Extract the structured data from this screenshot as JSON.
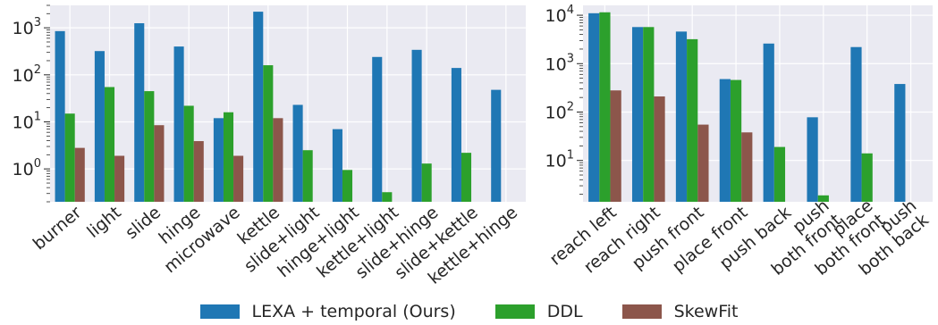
{
  "colors": {
    "background": "#eaeaf2",
    "grid": "#ffffff",
    "text": "#262626",
    "series": [
      "#1f77b4",
      "#2ca02c",
      "#8c564b"
    ]
  },
  "legend": {
    "items": [
      {
        "label": "LEXA + temporal (Ours)",
        "color": "#1f77b4"
      },
      {
        "label": "DDL",
        "color": "#2ca02c"
      },
      {
        "label": "SkewFit",
        "color": "#8c564b"
      }
    ]
  },
  "chart_data": [
    {
      "type": "bar",
      "yscale": "log",
      "ylim": [
        0.2,
        3000
      ],
      "grid": true,
      "yticks": [
        {
          "value": 1,
          "base": "10",
          "exp": "0"
        },
        {
          "value": 10,
          "base": "10",
          "exp": "1"
        },
        {
          "value": 100,
          "base": "10",
          "exp": "2"
        },
        {
          "value": 1000,
          "base": "10",
          "exp": "3"
        }
      ],
      "categories": [
        "burner",
        "light",
        "slide",
        "hinge",
        "microwave",
        "kettle",
        "slide+light",
        "hinge+light",
        "kettle+light",
        "slide+hinge",
        "slide+kettle",
        "kettle+hinge"
      ],
      "series": [
        {
          "name": "LEXA + temporal (Ours)",
          "values": [
            850,
            320,
            1250,
            400,
            12,
            2200,
            23,
            7,
            240,
            340,
            140,
            48
          ]
        },
        {
          "name": "DDL",
          "values": [
            15,
            55,
            45,
            22,
            16,
            160,
            2.5,
            0.95,
            0.32,
            1.3,
            2.2,
            null
          ]
        },
        {
          "name": "SkewFit",
          "values": [
            2.8,
            1.9,
            8.5,
            3.9,
            1.9,
            12,
            null,
            null,
            null,
            null,
            null,
            null
          ]
        }
      ]
    },
    {
      "type": "bar",
      "yscale": "log",
      "ylim": [
        1.4,
        16000
      ],
      "grid": true,
      "yticks": [
        {
          "value": 10,
          "base": "10",
          "exp": "1"
        },
        {
          "value": 100,
          "base": "10",
          "exp": "2"
        },
        {
          "value": 1000,
          "base": "10",
          "exp": "3"
        },
        {
          "value": 10000,
          "base": "10",
          "exp": "4"
        }
      ],
      "categories": [
        "reach left",
        "reach right",
        "push front",
        "place front",
        "push back",
        "push\nboth front",
        "place\nboth front",
        "push\nboth back"
      ],
      "series": [
        {
          "name": "LEXA + temporal (Ours)",
          "values": [
            11000,
            5700,
            4600,
            480,
            2600,
            78,
            2200,
            380
          ]
        },
        {
          "name": "DDL",
          "values": [
            11500,
            5700,
            3200,
            460,
            19,
            1.9,
            14,
            null
          ]
        },
        {
          "name": "SkewFit",
          "values": [
            280,
            210,
            55,
            38,
            null,
            null,
            null,
            null
          ]
        }
      ]
    }
  ]
}
